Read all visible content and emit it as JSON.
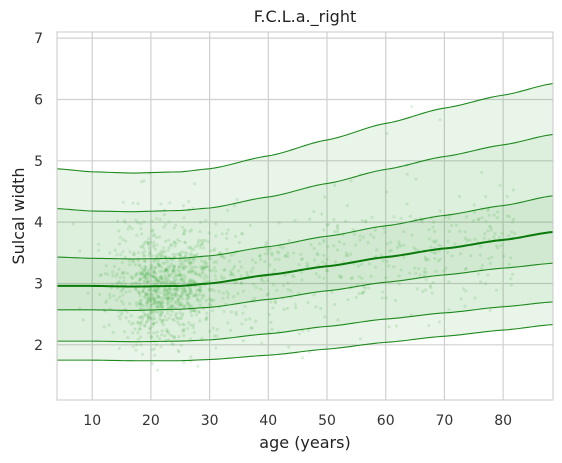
{
  "chart_data": {
    "type": "line",
    "title": "F.C.L.a._right",
    "xlabel": "age (years)",
    "ylabel": "Sulcal width",
    "xlim": [
      4,
      88.5
    ],
    "ylim": [
      1.1,
      7.1
    ],
    "x_ticks": [
      "10",
      "20",
      "30",
      "40",
      "50",
      "60",
      "70",
      "80"
    ],
    "y_ticks": [
      "2",
      "3",
      "4",
      "5",
      "6",
      "7"
    ],
    "grid": true,
    "legend": "none",
    "colors": {
      "line": "#1e8a1e",
      "median": "#0a7a0a",
      "band": "#2a9a2a",
      "points": "#4caf50",
      "grid": "#d0d0d0",
      "frame": "#c8c8c8"
    },
    "x": [
      4,
      10,
      17,
      25,
      30,
      40,
      50,
      60,
      70,
      80,
      88.5
    ],
    "series": [
      {
        "values": [
          1.75,
          1.75,
          1.74,
          1.74,
          1.76,
          1.83,
          1.93,
          2.04,
          2.14,
          2.24,
          2.33
        ]
      },
      {
        "values": [
          2.06,
          2.06,
          2.05,
          2.06,
          2.08,
          2.18,
          2.3,
          2.42,
          2.52,
          2.62,
          2.7
        ]
      },
      {
        "values": [
          2.57,
          2.57,
          2.56,
          2.58,
          2.61,
          2.74,
          2.88,
          3.02,
          3.14,
          3.25,
          3.33
        ]
      },
      {
        "values": [
          2.96,
          2.96,
          2.95,
          2.96,
          3.0,
          3.14,
          3.28,
          3.43,
          3.57,
          3.71,
          3.84
        ]
      },
      {
        "values": [
          3.43,
          3.41,
          3.4,
          3.41,
          3.45,
          3.6,
          3.77,
          3.94,
          4.11,
          4.27,
          4.43
        ]
      },
      {
        "values": [
          4.22,
          4.18,
          4.17,
          4.19,
          4.23,
          4.41,
          4.63,
          4.86,
          5.07,
          5.26,
          5.43
        ]
      },
      {
        "values": [
          4.87,
          4.82,
          4.8,
          4.82,
          4.87,
          5.08,
          5.34,
          5.61,
          5.86,
          6.07,
          6.26
        ]
      }
    ],
    "median_series_index": 3,
    "scatter": {
      "n_points": 1400,
      "age_mode": 22,
      "opacity": 0.18
    }
  }
}
